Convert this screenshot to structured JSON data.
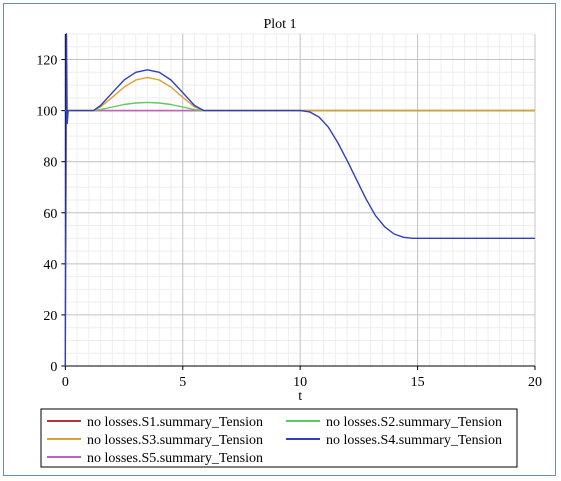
{
  "chart_data": {
    "type": "line",
    "title": "Plot 1",
    "xlabel": "t",
    "ylabel": "",
    "xlim": [
      -0.1,
      20
    ],
    "ylim": [
      0,
      130
    ],
    "xticks": [
      0,
      5,
      10,
      15,
      20
    ],
    "yticks": [
      0,
      20,
      40,
      60,
      80,
      100,
      120
    ],
    "grid": true,
    "legend_position": "bottom",
    "series": [
      {
        "name": "no losses.S1.summary_Tension",
        "color": "#c0303a",
        "x": [
          0,
          20
        ],
        "y": [
          100,
          100
        ]
      },
      {
        "name": "no losses.S2.summary_Tension",
        "color": "#5fc85f",
        "x": [
          0,
          1.2,
          1.5,
          2.0,
          2.5,
          3.0,
          3.5,
          4.0,
          4.5,
          5.0,
          5.5,
          5.9,
          20
        ],
        "y": [
          100,
          100,
          100.4,
          101.4,
          102.4,
          103.0,
          103.2,
          103.0,
          102.4,
          101.4,
          100.4,
          100,
          100
        ]
      },
      {
        "name": "no losses.S3.summary_Tension",
        "color": "#e0a030",
        "x": [
          0,
          1.2,
          1.5,
          2.0,
          2.5,
          3.0,
          3.5,
          4.0,
          4.5,
          5.0,
          5.5,
          5.9,
          20
        ],
        "y": [
          100,
          100,
          101.5,
          105.2,
          109.2,
          112.0,
          113.0,
          112.0,
          109.2,
          105.2,
          101.5,
          100,
          100
        ]
      },
      {
        "name": "no losses.S4.summary_Tension",
        "color": "#2f3fc0",
        "x": [
          0,
          0.05,
          0.08,
          0.12,
          0.2,
          1.2,
          1.5,
          2.0,
          2.5,
          3.0,
          3.5,
          4.0,
          4.5,
          5.0,
          5.5,
          5.9,
          10.0,
          10.4,
          10.8,
          11.2,
          11.6,
          12.0,
          12.4,
          12.8,
          13.2,
          13.6,
          14.0,
          14.4,
          14.8,
          20
        ],
        "y": [
          0,
          130,
          95,
          100,
          100,
          100,
          102,
          107,
          112,
          115,
          116,
          115,
          112,
          107,
          102,
          100,
          100,
          99.5,
          97.5,
          93.5,
          87.5,
          80.5,
          73.0,
          65.5,
          59.0,
          54.5,
          51.7,
          50.4,
          50,
          50
        ]
      },
      {
        "name": "no losses.S5.summary_Tension",
        "color": "#c060c0",
        "x": [
          0,
          20
        ],
        "y": [
          100,
          100
        ]
      }
    ]
  }
}
